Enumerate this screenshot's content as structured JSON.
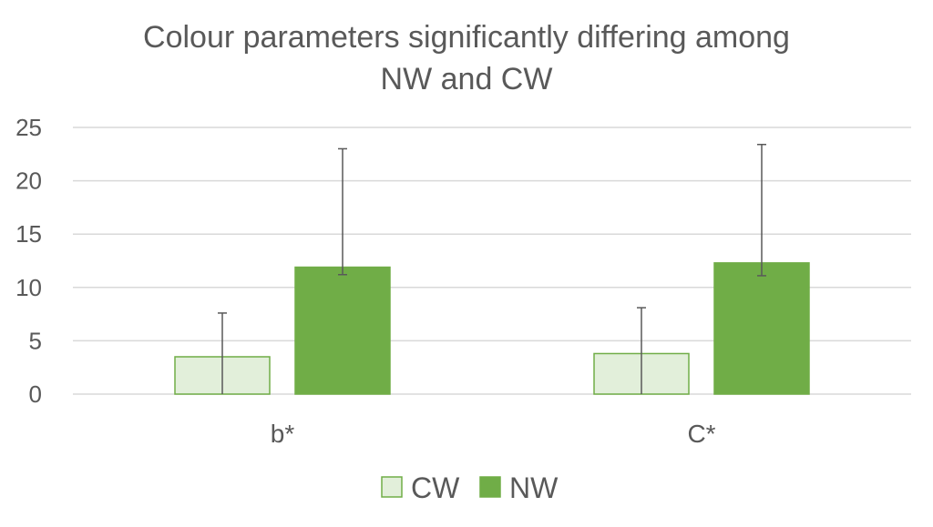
{
  "chart_data": {
    "type": "bar",
    "title_lines": [
      "Colour parameters significantly differing among",
      "NW and CW"
    ],
    "categories": [
      "b*",
      "C*"
    ],
    "series": [
      {
        "name": "CW",
        "values": [
          3.5,
          3.8
        ],
        "error_low": [
          3.5,
          3.8
        ],
        "error_high": [
          7.6,
          8.1
        ],
        "fill": "#e2efda",
        "stroke": "#70ad47"
      },
      {
        "name": "NW",
        "values": [
          11.9,
          12.3
        ],
        "error_low": [
          0.7,
          1.2
        ],
        "error_high": [
          23.0,
          23.4
        ],
        "fill": "#70ad47",
        "stroke": "#70ad47"
      }
    ],
    "ylim": [
      0,
      25
    ],
    "yticks": [
      "0",
      "5",
      "10",
      "15",
      "20",
      "25"
    ],
    "grid": true,
    "legend_position": "bottom"
  }
}
